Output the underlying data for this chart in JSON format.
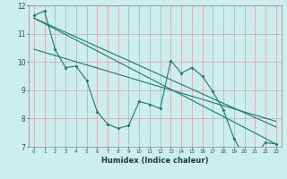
{
  "xlabel": "Humidex (Indice chaleur)",
  "bg_color": "#ceeeed",
  "grid_color": "#d4a0a0",
  "line_color": "#1a7a6e",
  "xlim": [
    -0.5,
    23.5
  ],
  "ylim": [
    7,
    12
  ],
  "yticks": [
    7,
    8,
    9,
    10,
    11,
    12
  ],
  "xticks": [
    0,
    1,
    2,
    3,
    4,
    5,
    6,
    7,
    8,
    9,
    10,
    11,
    12,
    13,
    14,
    15,
    16,
    17,
    18,
    19,
    20,
    21,
    22,
    23
  ],
  "series1_x": [
    0,
    1,
    2,
    3,
    4,
    5,
    6,
    7,
    8,
    9,
    10,
    11,
    12,
    13,
    14,
    15,
    16,
    17,
    18,
    19,
    20,
    21,
    22,
    23
  ],
  "series1_y": [
    11.65,
    11.8,
    10.45,
    9.8,
    9.85,
    9.35,
    8.25,
    7.8,
    7.65,
    7.75,
    8.6,
    8.5,
    8.35,
    10.05,
    9.6,
    9.8,
    9.5,
    8.95,
    8.3,
    7.3,
    6.65,
    6.7,
    7.15,
    7.1
  ],
  "trend1_x": [
    0,
    23
  ],
  "trend1_y": [
    11.55,
    7.7
  ],
  "trend2_x": [
    0,
    23
  ],
  "trend2_y": [
    11.55,
    7.1
  ],
  "trend3_x": [
    0,
    23
  ],
  "trend3_y": [
    10.45,
    7.9
  ]
}
